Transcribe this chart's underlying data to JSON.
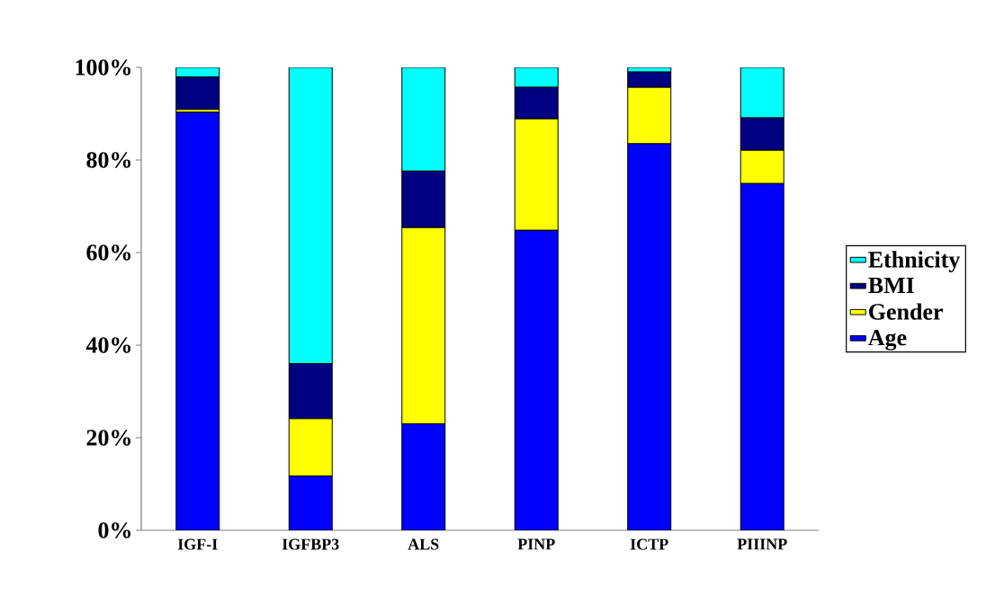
{
  "chart_data": {
    "type": "bar",
    "stacked": true,
    "categories": [
      "IGF-I",
      "IGFBP3",
      "ALS",
      "PINP",
      "ICTP",
      "PIIINP"
    ],
    "series": [
      {
        "name": "Age",
        "color": "#0000ff",
        "values": [
          90.3,
          11.7,
          23.0,
          64.8,
          83.5,
          74.9
        ]
      },
      {
        "name": "Gender",
        "color": "#ffff00",
        "values": [
          0.6,
          12.4,
          42.4,
          24.1,
          12.2,
          7.2
        ]
      },
      {
        "name": "BMI",
        "color": "#000080",
        "values": [
          7.0,
          11.9,
          12.2,
          6.8,
          3.3,
          7.0
        ]
      },
      {
        "name": "Ethnicity",
        "color": "#00ffff",
        "values": [
          2.1,
          64.0,
          22.4,
          4.3,
          1.0,
          10.9
        ]
      }
    ],
    "ylim": [
      0,
      100
    ],
    "yticks": [
      {
        "value": 0,
        "label": "0%"
      },
      {
        "value": 20,
        "label": "20%"
      },
      {
        "value": 40,
        "label": "40%"
      },
      {
        "value": 60,
        "label": "60%"
      },
      {
        "value": 80,
        "label": "80%"
      },
      {
        "value": 100,
        "label": "100%"
      }
    ],
    "legend": "right"
  }
}
